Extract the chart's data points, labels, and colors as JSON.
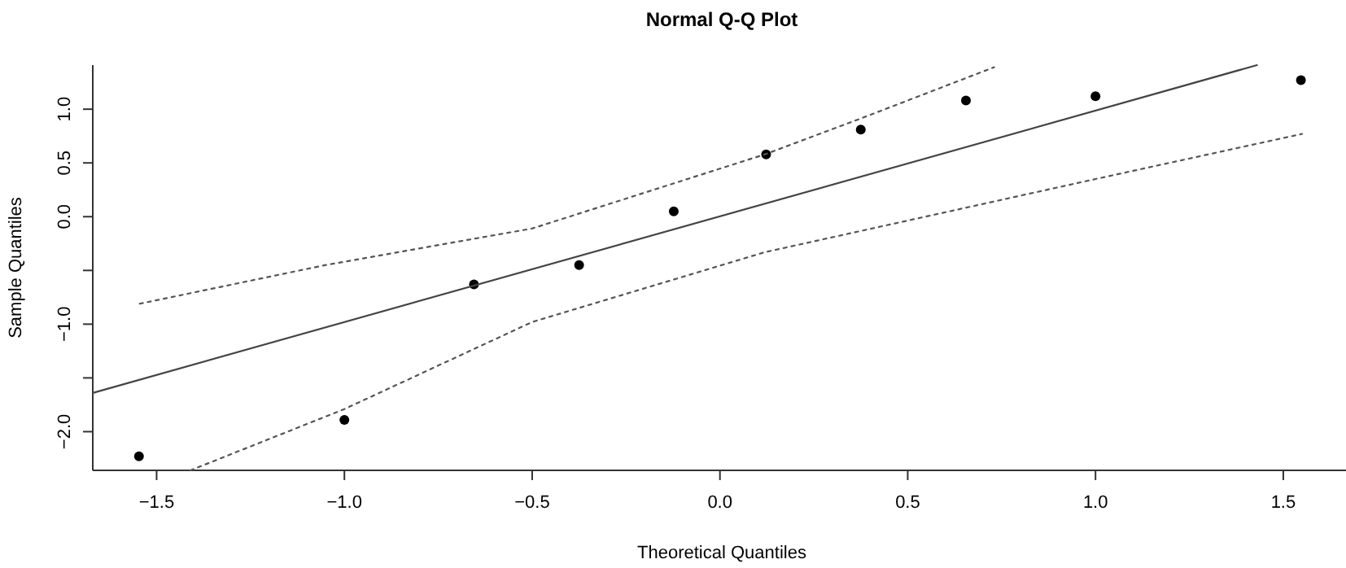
{
  "chart_data": {
    "type": "scatter",
    "title": "Normal Q-Q Plot",
    "xlabel": "Theoretical Quantiles",
    "ylabel": "Sample Quantiles",
    "xlim": [
      -1.67,
      1.68
    ],
    "ylim": [
      -2.36,
      1.41
    ],
    "xticks": [
      {
        "value": -1.5,
        "label": "−1.5"
      },
      {
        "value": -1,
        "label": "−1.0"
      },
      {
        "value": -0.5,
        "label": "−0.5"
      },
      {
        "value": 0,
        "label": "0.0"
      },
      {
        "value": 0.5,
        "label": "0.5"
      },
      {
        "value": 1,
        "label": "1.0"
      },
      {
        "value": 1.5,
        "label": "1.5"
      }
    ],
    "yticks": [
      {
        "value": -2,
        "label": "−2.0"
      },
      {
        "value": -1.5,
        "label": null
      },
      {
        "value": -1,
        "label": "−1.0"
      },
      {
        "value": -0.5,
        "label": null
      },
      {
        "value": 0,
        "label": "0.0"
      },
      {
        "value": 0.5,
        "label": "0.5"
      },
      {
        "value": 1,
        "label": "1.0"
      }
    ],
    "grid": false,
    "series": [
      {
        "marker": "circle",
        "color": "#000000",
        "x": [
          -1.547,
          -1.0,
          -0.655,
          -0.375,
          -0.123,
          0.123,
          0.375,
          0.655,
          1.0,
          1.547
        ],
        "values": [
          -2.23,
          -1.89,
          -0.63,
          -0.45,
          0.05,
          0.58,
          0.81,
          1.08,
          1.12,
          1.27
        ]
      },
      {
        "type": "line",
        "marker": "none",
        "color": "#444444",
        "line_style": "solid",
        "x": [
          -1.67,
          1.43
        ],
        "values": [
          -1.64,
          1.41
        ]
      },
      {
        "type": "line",
        "marker": "none",
        "color": "#555555",
        "line_style": "dotted",
        "x": [
          -1.545,
          -1.05,
          -0.5,
          0.12,
          0.38,
          0.73
        ],
        "values": [
          -0.81,
          -0.45,
          -0.11,
          0.58,
          0.92,
          1.39
        ]
      },
      {
        "type": "line",
        "marker": "none",
        "color": "#555555",
        "line_style": "dotted",
        "x": [
          -1.41,
          -1.0,
          -0.5,
          0.12,
          1.0,
          1.55
        ],
        "values": [
          -2.36,
          -1.79,
          -0.98,
          -0.33,
          0.35,
          0.77
        ]
      }
    ]
  }
}
